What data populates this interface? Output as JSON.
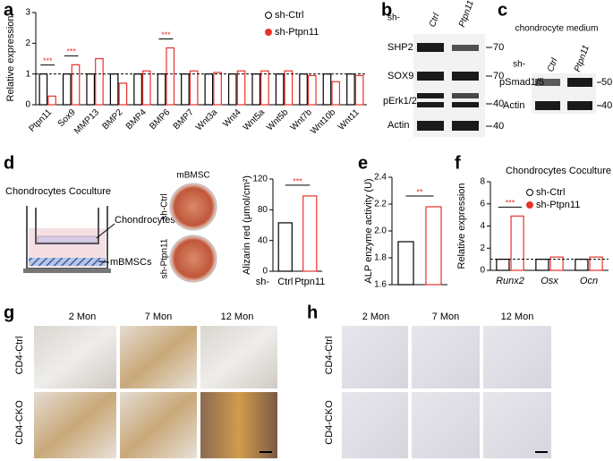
{
  "panels": [
    "a",
    "b",
    "c",
    "d",
    "e",
    "f",
    "g",
    "h"
  ],
  "chart_data": [
    {
      "type": "bar",
      "ylabel": "Relative expression",
      "categories": [
        "Ptpn11",
        "Sox9",
        "MMP13",
        "BMP2",
        "BMP4",
        "BMP6",
        "BMP7",
        "Wnt3a",
        "Wnt4",
        "Wnt5a",
        "Wnt5b",
        "Wnt7b",
        "Wnt10b",
        "Wnt11"
      ],
      "series": [
        {
          "name": "sh-Ctrl",
          "color": "#000000",
          "values": [
            1,
            1,
            1,
            1,
            1,
            1,
            1,
            1,
            1,
            1,
            1,
            1,
            1,
            1
          ]
        },
        {
          "name": "sh-Ptpn11",
          "color": "#e8322b",
          "values": [
            0.28,
            1.3,
            1.5,
            0.7,
            1.1,
            1.85,
            1.1,
            1.05,
            1.1,
            1.1,
            1.1,
            0.95,
            0.75,
            0.95
          ]
        }
      ],
      "ylim": [
        0,
        3
      ],
      "yticks": [
        0,
        1,
        2,
        3
      ],
      "reference_line": 1,
      "significance": [
        "***",
        "***",
        null,
        null,
        null,
        "***",
        null,
        null,
        null,
        null,
        null,
        null,
        null,
        null
      ],
      "legend": "upper right"
    },
    {
      "type": "bar",
      "ylabel": "Alizarin red (μmol/cm²)",
      "x_prefix": "sh-",
      "categories": [
        "Ctrl",
        "Ptpn11"
      ],
      "values": [
        63,
        98
      ],
      "colors": [
        "#000000",
        "#e8322b"
      ],
      "ylim": [
        0,
        120
      ],
      "yticks": [
        0,
        40,
        80,
        120
      ],
      "significance": "***"
    },
    {
      "type": "bar",
      "ylabel": "ALP enzyme activity (U)",
      "categories": [
        null,
        null
      ],
      "values": [
        1.92,
        2.18
      ],
      "colors": [
        "#000000",
        "#e8322b"
      ],
      "ylim": [
        1.6,
        2.4
      ],
      "yticks": [
        1.6,
        1.8,
        {
          "value": 2,
          "label": "2.0"
        },
        2.2,
        2.4
      ],
      "significance": "**"
    },
    {
      "type": "bar",
      "title": "Chondrocytes Coculture",
      "ylabel": "Relative expression",
      "categories": [
        "Runx2",
        "Osx",
        "Ocn"
      ],
      "series": [
        {
          "name": "sh-Ctrl",
          "color": "#000000",
          "values": [
            1,
            1,
            1
          ]
        },
        {
          "name": "sh-Ptpn11",
          "color": "#e8322b",
          "values": [
            4.9,
            1.2,
            1.2
          ]
        }
      ],
      "ylim": [
        0,
        8
      ],
      "yticks": [
        0,
        2,
        4,
        6,
        8
      ],
      "reference_line": 1,
      "significance": [
        "***",
        null,
        null
      ],
      "legend": "upper right"
    }
  ],
  "blot_b": {
    "prefix": "sh-",
    "lanes": [
      "Ctrl",
      "Ptpn11"
    ],
    "rows": [
      "SHP2",
      "SOX9",
      "pErk1/2",
      "Actin"
    ],
    "markers": [
      "70",
      "70",
      "40",
      "40"
    ]
  },
  "blot_c": {
    "title": "chondrocyte medium",
    "prefix": "sh-",
    "lanes": [
      "Ctrl",
      "Ptpn11"
    ],
    "rows": [
      "pSmad1/5",
      "Actin"
    ],
    "markers": [
      "50",
      "40"
    ]
  },
  "coculture_d": {
    "title": "Chondrocytes Coculture",
    "upper": "Chondrocytes",
    "lower": "mBMSCs",
    "dish_title": "mBMSC",
    "dish_rows": [
      "sh-Ctrl",
      "sh-Ptpn11"
    ]
  },
  "ihc_g": {
    "columns": [
      "2 Mon",
      "7 Mon",
      "12 Mon"
    ],
    "rows": [
      "CD4-Ctrl",
      "CD4-CKO"
    ]
  },
  "ihc_h": {
    "columns": [
      "2 Mon",
      "7 Mon",
      "12 Mon"
    ],
    "rows": [
      "CD4-Ctrl",
      "CD4-CKO"
    ]
  }
}
